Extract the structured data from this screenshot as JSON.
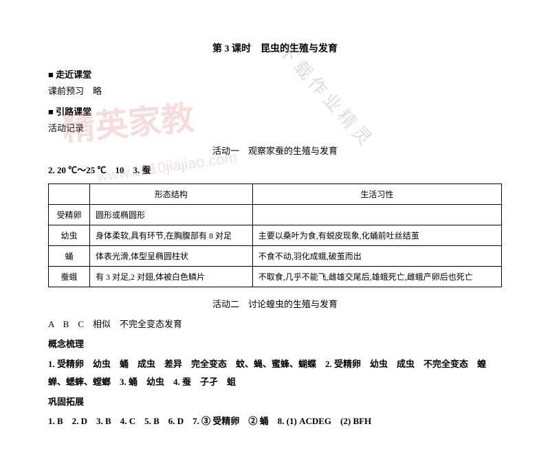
{
  "title": "第 3 课时　昆虫的生殖与发育",
  "sections": {
    "s1_header": "■ 走近课堂",
    "s1_line1": "课前预习　略",
    "s2_header": "■ 引路课堂",
    "s2_line1": "活动记录",
    "activity1_title": "活动一　观察家蚕的生殖与发育",
    "pre_table": "2. 20 ℃～25 ℃　10　3. 蚕",
    "activity2_title": "活动二　讨论蝗虫的生殖与发育",
    "act2_line1": "A　B　C　相似　不完全变态发育",
    "concept_header": "概念梳理",
    "concept_line": "1. 受精卵　幼虫　蛹　成虫　差异　完全变态　蚊、蝇、蜜蜂、蝴蝶　2. 受精卵　幼虫　成虫　不完全变态　蝗蝉、蟋蟀、螳螂　3. 蛹　幼虫　4. 蚕　子孑　蛆",
    "consolidate_header": "巩固拓展",
    "consolidate_line": "1. B　2. D　3. B　4. C　5. B　6. D　7. ③ 受精卵　② 蛹　8. (1) ACDEG　(2) BFH"
  },
  "table": {
    "headers": [
      "",
      "形态结构",
      "生活习性"
    ],
    "rows": [
      {
        "label": "受精卵",
        "morph": "圆形或椭圆形",
        "habit": ""
      },
      {
        "label": "幼虫",
        "morph": "身体柔软,具有环节,在胸腹部有 8 对足",
        "habit": "主要以桑叶为食,有蜕皮现象,化蛹前吐丝结茧"
      },
      {
        "label": "蛹",
        "morph": "体表光滑,体型呈椭圆柱状",
        "habit": "不食不动,羽化成蛾,破茧而出"
      },
      {
        "label": "蚕蛾",
        "morph": "有 3 对足,2 对翅,体被白色鳞片",
        "habit": "不取食,几乎不能飞,雌雄交尾后,雄蛾死亡,雌蛾产卵后也死亡"
      }
    ]
  },
  "watermarks": {
    "main": "精英家教",
    "url": "www.1010jiajiao.com",
    "diag": "下载作业精灵"
  }
}
